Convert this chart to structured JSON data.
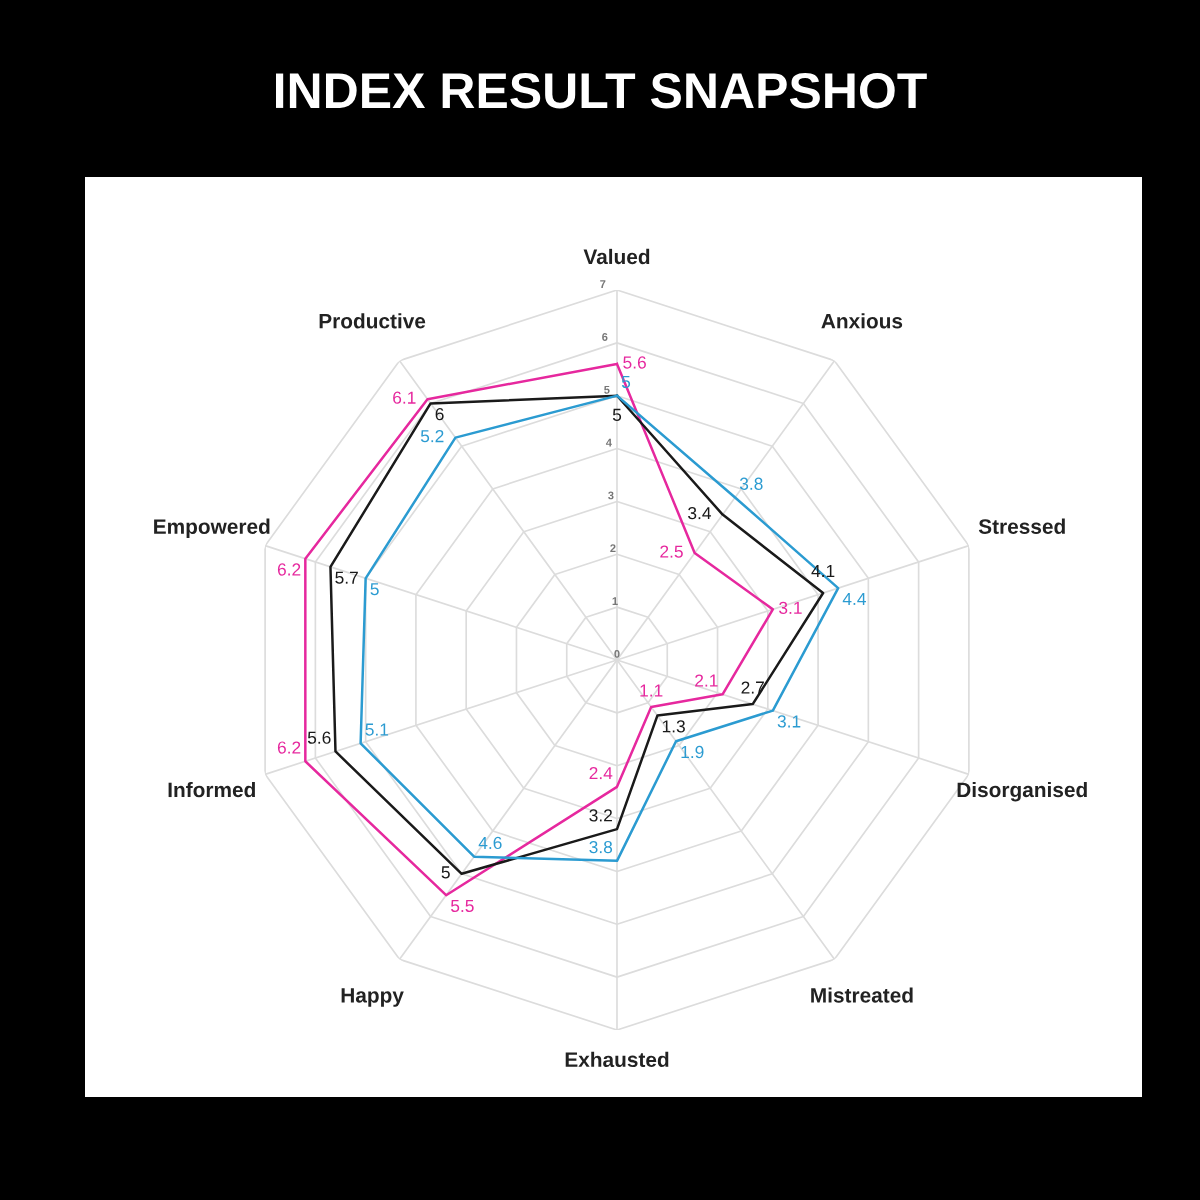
{
  "chart_data": {
    "type": "radar",
    "title": "INDEX RESULT SNAPSHOT",
    "categories": [
      "Valued",
      "Anxious",
      "Stressed",
      "Disorganised",
      "Mistreated",
      "Exhausted",
      "Happy",
      "Informed",
      "Empowered",
      "Productive"
    ],
    "series": [
      {
        "color": "#e6289e",
        "values": [
          5.6,
          2.5,
          3.1,
          2.1,
          1.1,
          2.4,
          5.5,
          6.2,
          6.2,
          6.1
        ]
      },
      {
        "color": "#1a1a1a",
        "values": [
          5,
          3.4,
          4.1,
          2.7,
          1.3,
          3.2,
          5,
          5.6,
          5.7,
          6
        ]
      },
      {
        "color": "#2b9bd1",
        "values": [
          5,
          3.8,
          4.4,
          3.1,
          1.9,
          3.8,
          4.6,
          5.1,
          5,
          5.2
        ]
      }
    ],
    "ylim": [
      0,
      7
    ],
    "yticks": [
      0,
      1,
      2,
      3,
      4,
      5,
      6,
      7
    ],
    "grid": true,
    "data_labels": true
  }
}
